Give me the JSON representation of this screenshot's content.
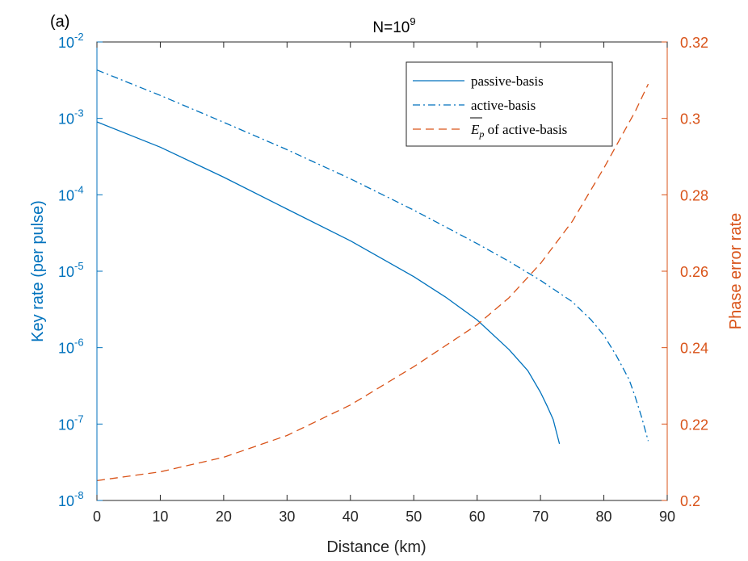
{
  "panel_label": "(a)",
  "title": {
    "main": "N=10",
    "sup": "9"
  },
  "colors": {
    "left_axis": "#0072BD",
    "right_axis": "#D95319",
    "axes": "#262626"
  },
  "chart_data": {
    "type": "line",
    "xlabel": "Distance (km)",
    "ylabel_left": "Key rate (per pulse)",
    "ylabel_right": "Phase error rate",
    "xlim": [
      0,
      90
    ],
    "ylim_left": [
      1e-08,
      0.01
    ],
    "ylim_left_scale": "log",
    "ylim_right": [
      0.2,
      0.32
    ],
    "x_ticks": [
      "0",
      "10",
      "20",
      "30",
      "40",
      "50",
      "60",
      "70",
      "80",
      "90"
    ],
    "y_left_ticks": [
      {
        "base": "10",
        "exp": "-8"
      },
      {
        "base": "10",
        "exp": "-7"
      },
      {
        "base": "10",
        "exp": "-6"
      },
      {
        "base": "10",
        "exp": "-5"
      },
      {
        "base": "10",
        "exp": "-4"
      },
      {
        "base": "10",
        "exp": "-3"
      },
      {
        "base": "10",
        "exp": "-2"
      }
    ],
    "y_right_ticks": [
      "0.2",
      "0.22",
      "0.24",
      "0.26",
      "0.28",
      "0.3",
      "0.32"
    ],
    "grid": false,
    "legend_position": "top-right",
    "series": [
      {
        "name": "passive-basis",
        "axis": "left",
        "style": "solid",
        "color": "#0072BD",
        "points": [
          [
            0,
            0.0009
          ],
          [
            10,
            0.00042
          ],
          [
            20,
            0.00017
          ],
          [
            30,
            6.5e-05
          ],
          [
            40,
            2.5e-05
          ],
          [
            50,
            8.5e-06
          ],
          [
            55,
            4.6e-06
          ],
          [
            60,
            2.3e-06
          ],
          [
            65,
            9.5e-07
          ],
          [
            68,
            5e-07
          ],
          [
            70,
            2.6e-07
          ],
          [
            71,
            1.75e-07
          ],
          [
            72,
            1.15e-07
          ],
          [
            73,
            5.5e-08
          ]
        ]
      },
      {
        "name": "active-basis",
        "axis": "left",
        "style": "dashdot",
        "color": "#0072BD",
        "points": [
          [
            0,
            0.0043
          ],
          [
            10,
            0.002
          ],
          [
            20,
            0.00089
          ],
          [
            30,
            0.00039
          ],
          [
            40,
            0.000162
          ],
          [
            50,
            6.3e-05
          ],
          [
            60,
            2.3e-05
          ],
          [
            65,
            1.35e-05
          ],
          [
            70,
            7.6e-06
          ],
          [
            75,
            4e-06
          ],
          [
            78,
            2.3e-06
          ],
          [
            80,
            1.45e-06
          ],
          [
            82,
            7.8e-07
          ],
          [
            84,
            3.8e-07
          ],
          [
            85,
            2.2e-07
          ],
          [
            86,
            1.2e-07
          ],
          [
            86.5,
            8.5e-08
          ],
          [
            87,
            6e-08
          ]
        ]
      },
      {
        "name": "Ep of active-basis",
        "label_math": "E",
        "label_sub": "p",
        "label_rest": " of active-basis",
        "axis": "right",
        "style": "dashed",
        "color": "#D95319",
        "points": [
          [
            0,
            0.2052
          ],
          [
            10,
            0.2075
          ],
          [
            20,
            0.2113
          ],
          [
            30,
            0.217
          ],
          [
            40,
            0.225
          ],
          [
            50,
            0.235
          ],
          [
            60,
            0.246
          ],
          [
            65,
            0.253
          ],
          [
            70,
            0.262
          ],
          [
            75,
            0.273
          ],
          [
            80,
            0.287
          ],
          [
            83,
            0.296
          ],
          [
            85,
            0.302
          ],
          [
            87,
            0.309
          ]
        ]
      }
    ]
  }
}
